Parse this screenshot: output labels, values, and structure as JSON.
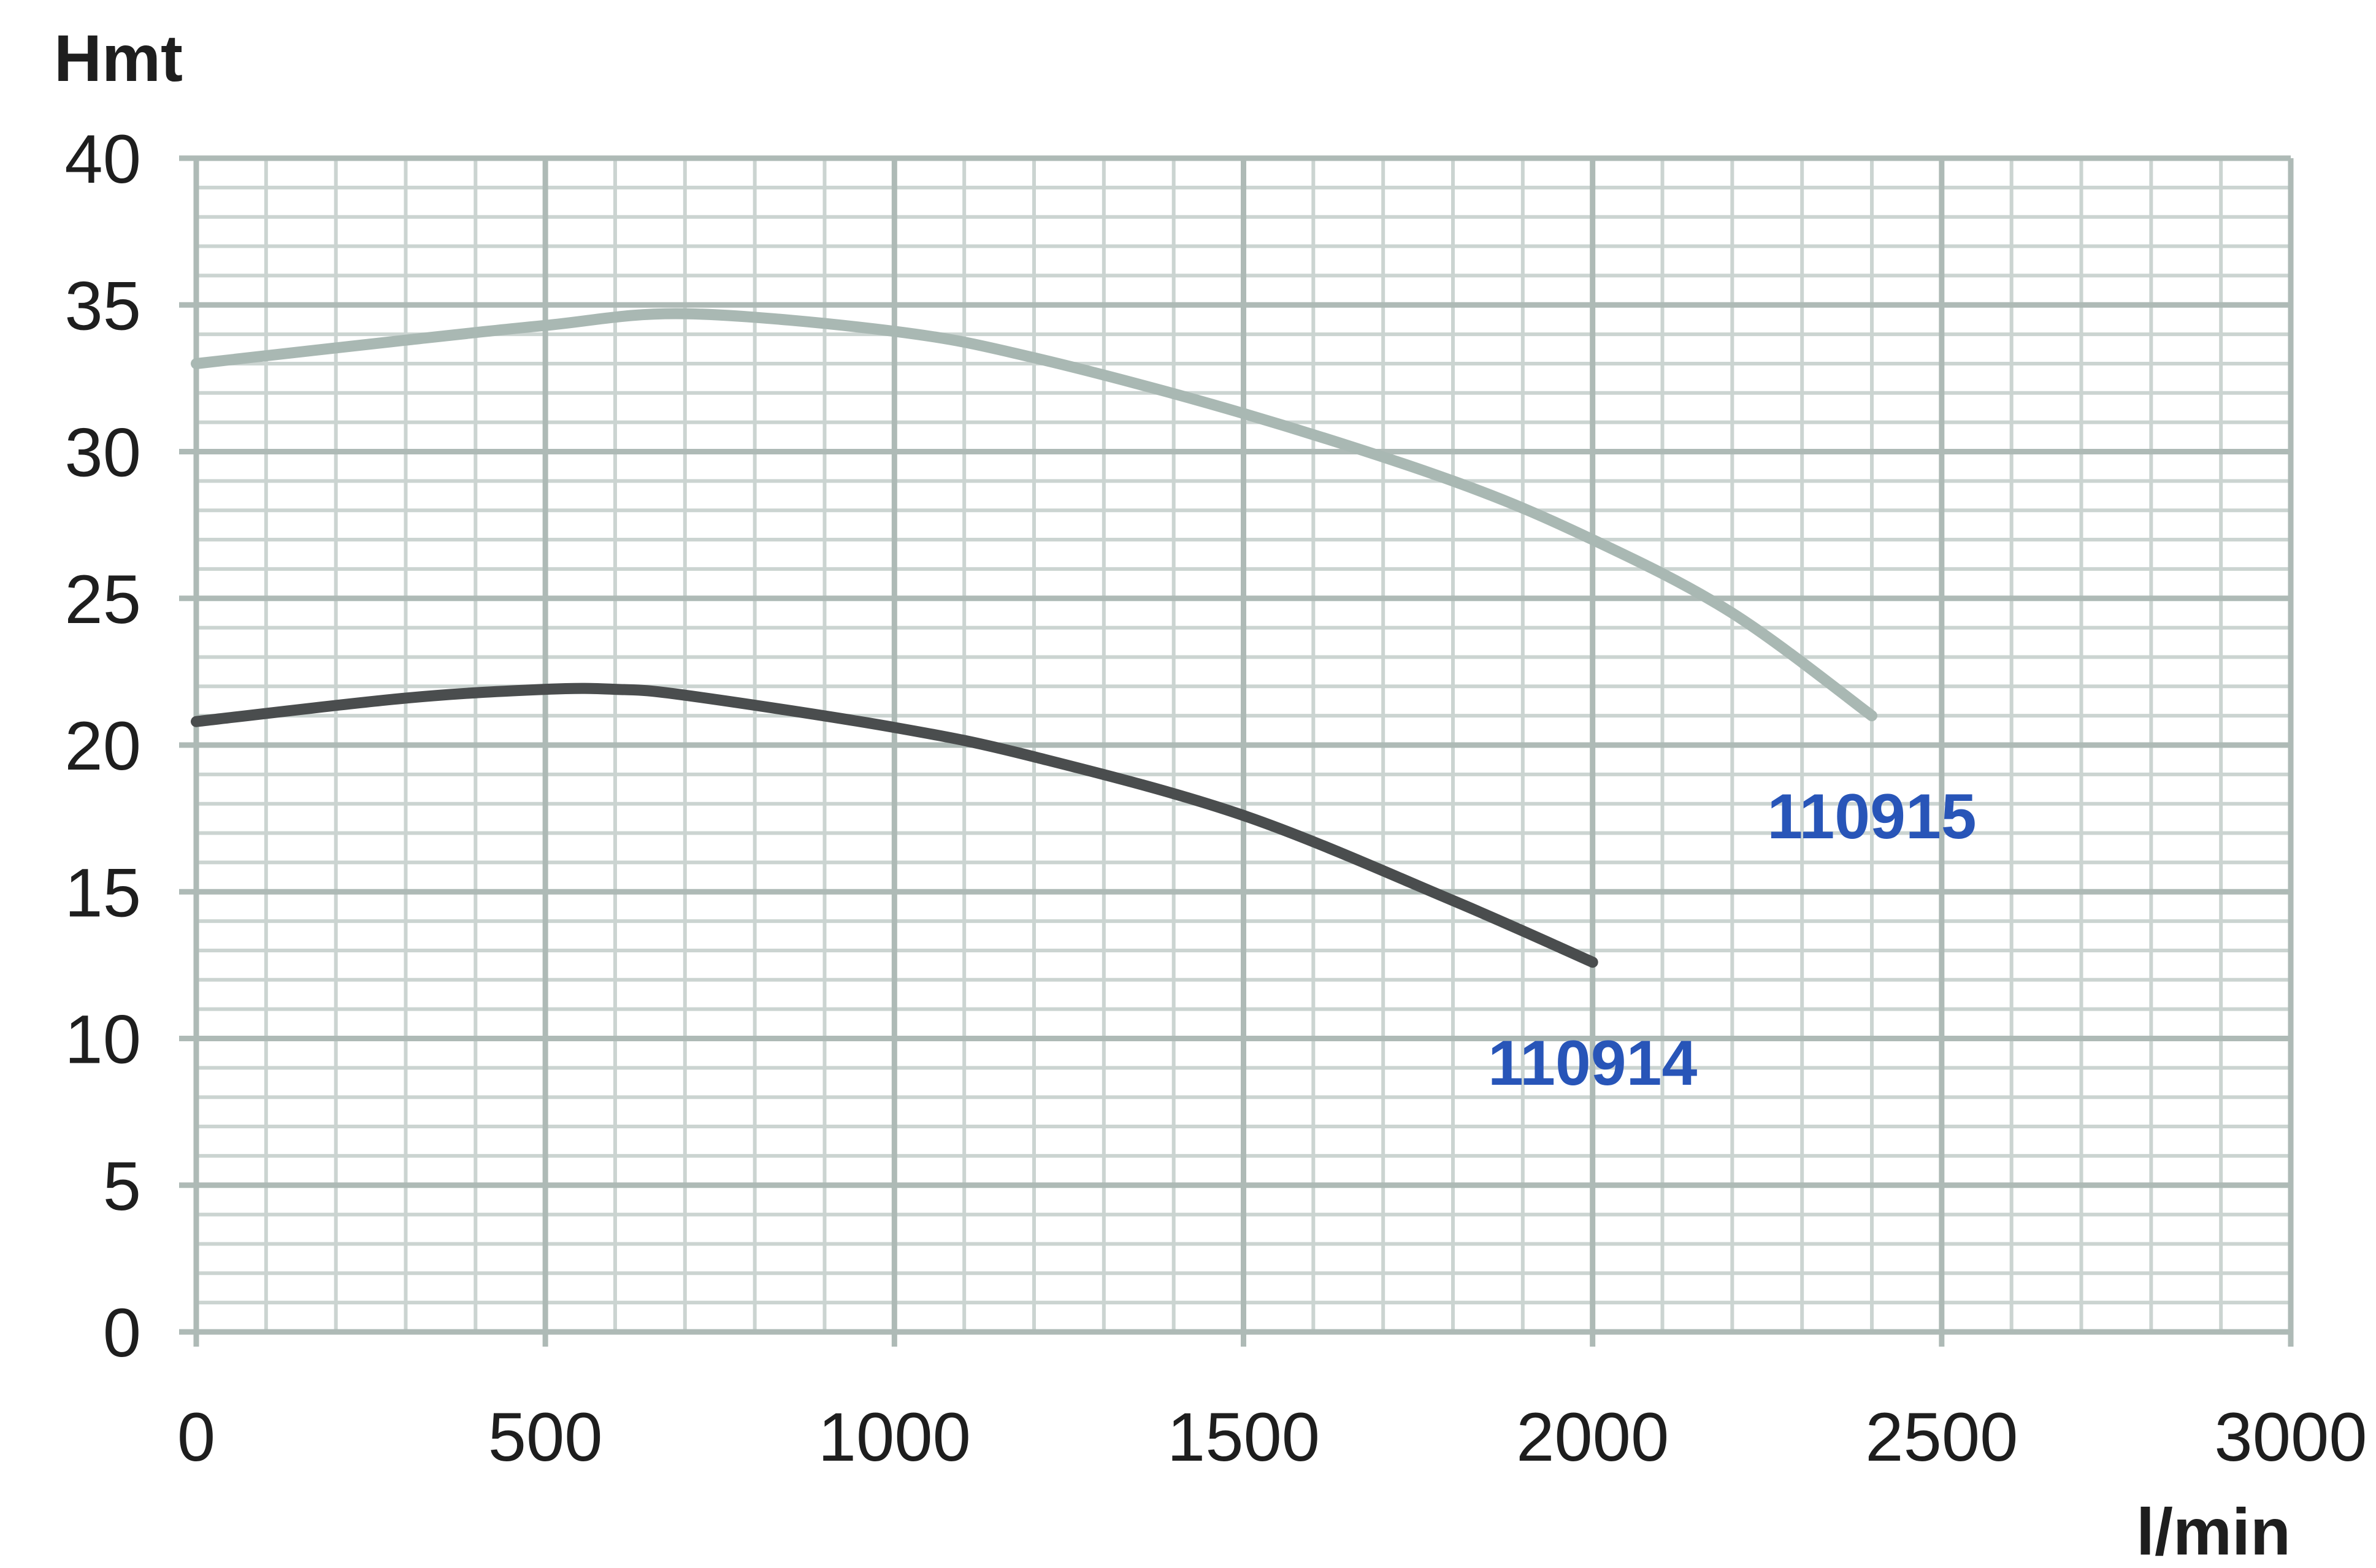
{
  "chart_data": {
    "type": "line",
    "title": "",
    "xlabel": "l/min",
    "ylabel": "Hmt",
    "xlim": [
      0,
      3000
    ],
    "ylim": [
      0,
      40
    ],
    "x_ticks": [
      0,
      500,
      1000,
      1500,
      2000,
      2500,
      3000
    ],
    "y_ticks": [
      0,
      5,
      10,
      15,
      20,
      25,
      30,
      35,
      40
    ],
    "x_minor_step": 100,
    "y_minor_step": 1,
    "grid": true,
    "legend": "inline labels at line ends",
    "series": [
      {
        "name": "110915",
        "color": "#a9b8b3",
        "label_color": "#2855b8",
        "x": [
          0,
          300,
          500,
          700,
          1000,
          1200,
          1500,
          1800,
          2000,
          2200,
          2400
        ],
        "y": [
          33,
          33.8,
          34.3,
          34.7,
          34.1,
          33.2,
          31.3,
          29,
          27,
          24.5,
          21
        ]
      },
      {
        "name": "110914",
        "color": "#4a4d4e",
        "label_color": "#2855b8",
        "x": [
          0,
          300,
          500,
          600,
          700,
          1000,
          1200,
          1500,
          1800,
          2000
        ],
        "y": [
          20.8,
          21.6,
          21.9,
          21.9,
          21.7,
          20.6,
          19.6,
          17.6,
          14.7,
          12.6
        ]
      }
    ]
  }
}
